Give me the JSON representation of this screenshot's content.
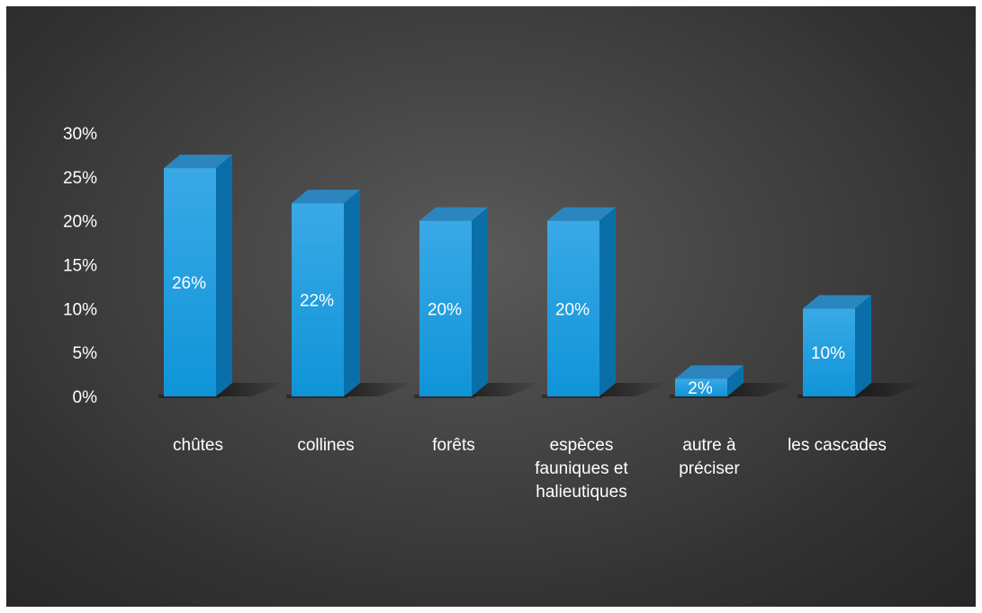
{
  "chart_data": {
    "type": "bar",
    "style": "3d-column",
    "categories": [
      "chûtes",
      "collines",
      "forêts",
      "espèces fauniques et halieutiques",
      "autre à préciser",
      "les cascades"
    ],
    "category_lines": [
      [
        "chûtes"
      ],
      [
        "collines"
      ],
      [
        "forêts"
      ],
      [
        "espèces",
        "fauniques et",
        "halieutiques"
      ],
      [
        "autre à",
        "préciser"
      ],
      [
        "les cascades"
      ]
    ],
    "values": [
      0.26,
      0.22,
      0.2,
      0.2,
      0.02,
      0.1
    ],
    "data_labels": [
      "26%",
      "22%",
      "20%",
      "20%",
      "2%",
      "10%"
    ],
    "y_ticks": [
      "0%",
      "5%",
      "10%",
      "15%",
      "20%",
      "25%",
      "30%"
    ],
    "ylim": [
      0,
      0.3
    ],
    "grid": false,
    "legend": "none",
    "title": "",
    "xlabel": "",
    "ylabel": "",
    "colors": {
      "bar_front_top": "#3aa9e6",
      "bar_front_bottom": "#0f94d8",
      "bar_side": "#0a6ea8",
      "bar_top": "#2b86c0",
      "background": "#3c3c3c",
      "text": "#ffffff"
    }
  }
}
